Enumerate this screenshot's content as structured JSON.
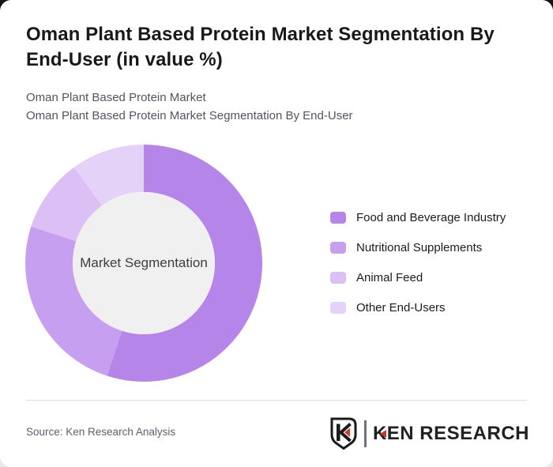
{
  "page": {
    "title": "Oman Plant Based Protein Market Segmentation By End-User (in value %)",
    "subtitle_line1": "Oman Plant Based Protein Market",
    "subtitle_line2": "Oman Plant Based Protein Market Segmentation By End-User",
    "source_text": "Source: Ken Research Analysis",
    "brand": {
      "name": "KEN RESEARCH",
      "accent_color": "#c63b30",
      "text_color": "#202124"
    }
  },
  "chart_data": {
    "type": "pie",
    "variant": "donut",
    "center_label": "Market Segmentation",
    "unit": "value %",
    "categories": [
      "Food and Beverage Industry",
      "Nutritional Supplements",
      "Animal Feed",
      "Other End-Users"
    ],
    "values": [
      55,
      25,
      10,
      10
    ],
    "colors": [
      "#b685ea",
      "#c69ff0",
      "#dcbff5",
      "#e5d2f8"
    ],
    "start_angle_deg": 0,
    "direction": "clockwise",
    "inner_radius_ratio": 0.6,
    "hole_color": "#f0f0f1",
    "legend_position": "right",
    "data_labels": false
  }
}
